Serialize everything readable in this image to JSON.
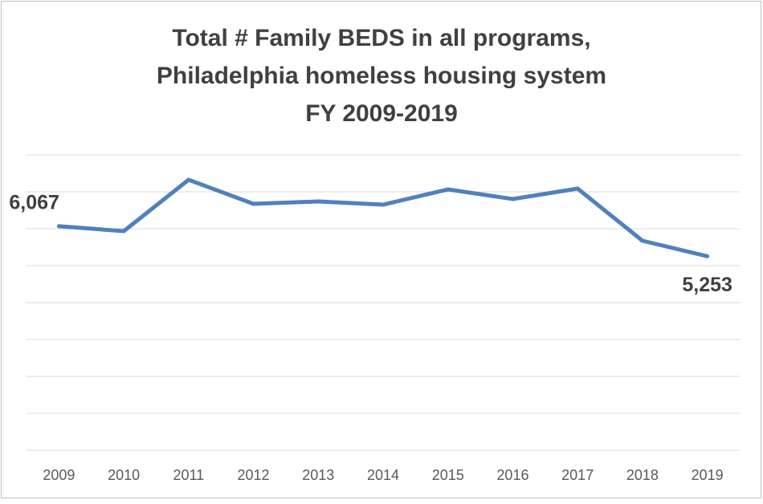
{
  "chart_data": {
    "type": "line",
    "title": [
      "Total # Family BEDS in all programs,",
      "Philadelphia homeless housing system",
      "FY 2009-2019"
    ],
    "categories": [
      "2009",
      "2010",
      "2011",
      "2012",
      "2013",
      "2014",
      "2015",
      "2016",
      "2017",
      "2018",
      "2019"
    ],
    "series": [
      {
        "color": "#4f81bd",
        "values": [
          6067,
          5935,
          7326,
          6674,
          6739,
          6652,
          7065,
          6804,
          7087,
          5674,
          5253
        ],
        "value_labels": [
          "6,067",
          null,
          null,
          null,
          null,
          null,
          null,
          null,
          null,
          null,
          "5,253"
        ]
      }
    ],
    "ylim": [
      0,
      8000
    ],
    "yticks": [
      0,
      1000,
      2000,
      3000,
      4000,
      5000,
      6000,
      7000,
      8000
    ],
    "grid": true
  }
}
